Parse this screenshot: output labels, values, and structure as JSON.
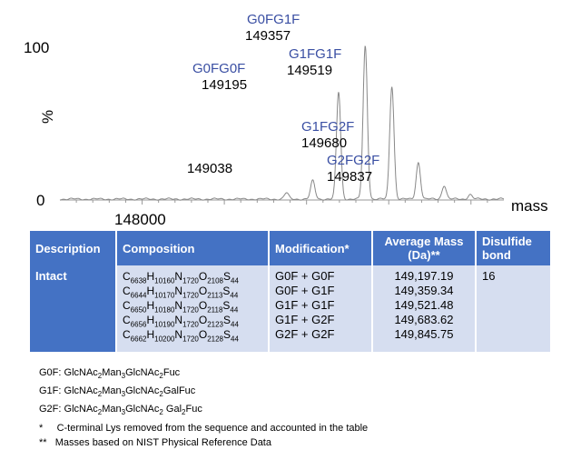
{
  "chart_data": {
    "type": "line",
    "ylabel": "%",
    "xlabel": "mass",
    "x_tick_labels": [
      "148000"
    ],
    "y_tick_labels": [
      "100",
      "0"
    ],
    "xlim": [
      147500,
      150200
    ],
    "ylim": [
      0,
      100
    ],
    "peak_labels": [
      {
        "name": "G0FG0F",
        "mass": "149195"
      },
      {
        "name": "G0FG1F",
        "mass": "149357"
      },
      {
        "name": "G1FG1F",
        "mass": "149519"
      },
      {
        "name": "G1FG2F",
        "mass": "149680"
      },
      {
        "name": "G2FG2F",
        "mass": "149837"
      },
      {
        "name": "",
        "mass": "149038"
      }
    ],
    "peaks": [
      {
        "x": 148878,
        "y": 4
      },
      {
        "x": 149038,
        "y": 12
      },
      {
        "x": 149195,
        "y": 70
      },
      {
        "x": 149357,
        "y": 100
      },
      {
        "x": 149519,
        "y": 74
      },
      {
        "x": 149680,
        "y": 24
      },
      {
        "x": 149837,
        "y": 9
      },
      {
        "x": 149995,
        "y": 3
      }
    ]
  },
  "table": {
    "headers": {
      "description": "Description",
      "composition": "Composition",
      "modification": "Modification*",
      "average_mass": "Average Mass (Da)**",
      "disulfide": "Disulfide bond"
    },
    "row": {
      "description": "Intact",
      "compositions": [
        {
          "C": "6638",
          "H": "10160",
          "N": "1720",
          "O": "2108",
          "S": "44"
        },
        {
          "C": "6644",
          "H": "10170",
          "N": "1720",
          "O": "2113",
          "S": "44"
        },
        {
          "C": "6650",
          "H": "10180",
          "N": "1720",
          "O": "2118",
          "S": "44"
        },
        {
          "C": "6656",
          "H": "10190",
          "N": "1720",
          "O": "2123",
          "S": "44"
        },
        {
          "C": "6662",
          "H": "10200",
          "N": "1720",
          "O": "2128",
          "S": "44"
        }
      ],
      "modifications": [
        "G0F + G0F",
        "G0F + G1F",
        "G1F + G1F",
        "G1F + G2F",
        "G2F + G2F"
      ],
      "masses": [
        "149,197.19",
        "149,359.34",
        "149,521.48",
        "149,683.62",
        "149,845.75"
      ],
      "disulfide": "16"
    }
  },
  "footnotes": {
    "g0f_label": "G0F:",
    "g1f_label": "G1F:",
    "g2f_label": "G2F:",
    "star": "*",
    "star_text": "C-terminal Lys removed from the sequence and accounted in the table",
    "dstar": "**",
    "dstar_text": "Masses based on NIST Physical Reference Data"
  },
  "colors": {
    "accent_blue": "#4472c4",
    "peak_label_blue": "#3a4fa3",
    "table_fill": "#d6def0"
  }
}
